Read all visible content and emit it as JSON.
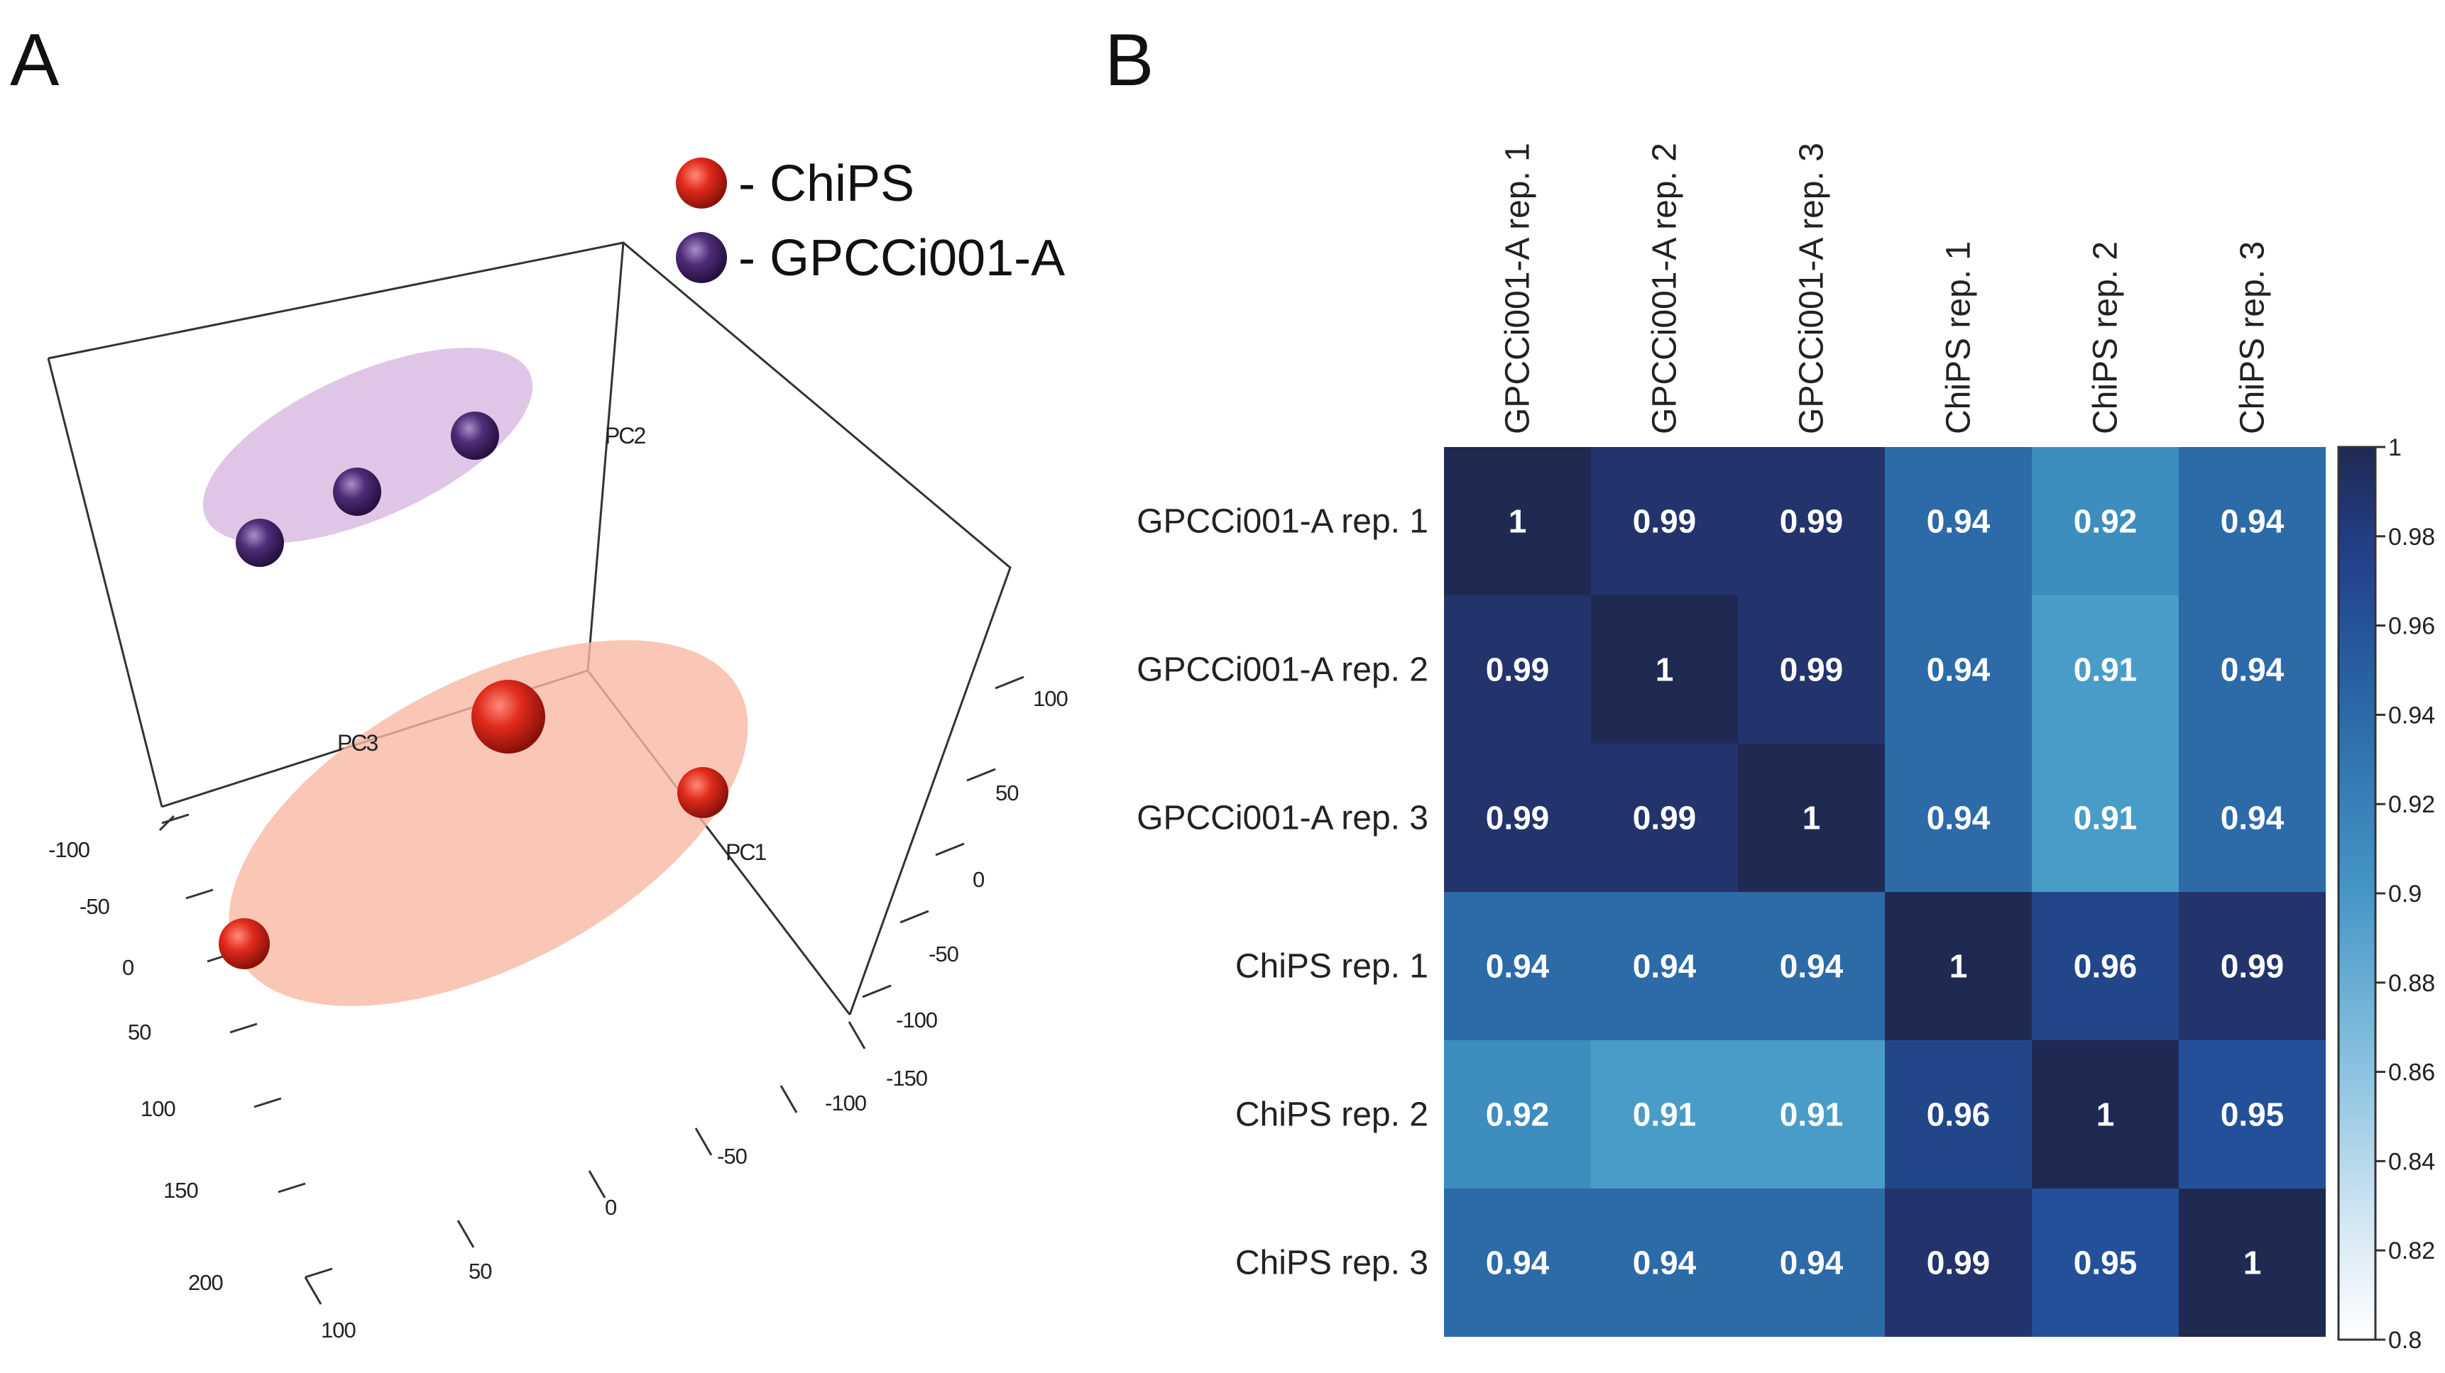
{
  "panels": {
    "a_letter": "A",
    "b_letter": "B"
  },
  "chart_data": [
    {
      "type": "scatter3d",
      "title": "",
      "axes": {
        "pc1": {
          "label": "PC1",
          "ticks": [
            "-150",
            "-100",
            "-50",
            "0",
            "50",
            "100"
          ]
        },
        "pc2": {
          "label": "PC2",
          "ticks": [
            "-100",
            "-50",
            "0",
            "50",
            "100"
          ]
        },
        "pc3": {
          "label": "PC3",
          "ticks": [
            "-100",
            "-50",
            "0",
            "50",
            "100",
            "150",
            "200"
          ]
        }
      },
      "legend": [
        {
          "label": "- ChiPS",
          "color": "#d42a1e"
        },
        {
          "label": "- GPCCi001-A",
          "color": "#4b2a74"
        }
      ],
      "groups": [
        {
          "name": "ChiPS",
          "color": "#d42a1e",
          "ellipse_color": "#f9b8a3",
          "points": 3
        },
        {
          "name": "GPCCi001-A",
          "color": "#4b2a74",
          "ellipse_color": "#d8b8e0",
          "points": 3
        }
      ]
    },
    {
      "type": "heatmap",
      "title": "",
      "rows": [
        "GPCCi001-A rep. 1",
        "GPCCi001-A rep. 2",
        "GPCCi001-A rep. 3",
        "ChiPS rep. 1",
        "ChiPS rep. 2",
        "ChiPS rep. 3"
      ],
      "columns": [
        "GPCCi001-A rep. 1",
        "GPCCi001-A rep. 2",
        "GPCCi001-A rep. 3",
        "ChiPS rep. 1",
        "ChiPS rep. 2",
        "ChiPS rep. 3"
      ],
      "values": [
        [
          1,
          0.99,
          0.99,
          0.94,
          0.92,
          0.94
        ],
        [
          0.99,
          1,
          0.99,
          0.94,
          0.91,
          0.94
        ],
        [
          0.99,
          0.99,
          1,
          0.94,
          0.91,
          0.94
        ],
        [
          0.94,
          0.94,
          0.94,
          1,
          0.96,
          0.99
        ],
        [
          0.92,
          0.91,
          0.91,
          0.96,
          1,
          0.95
        ],
        [
          0.94,
          0.94,
          0.94,
          0.99,
          0.95,
          1
        ]
      ],
      "labels": [
        [
          "1",
          "0.99",
          "0.99",
          "0.94",
          "0.92",
          "0.94"
        ],
        [
          "0.99",
          "1",
          "0.99",
          "0.94",
          "0.91",
          "0.94"
        ],
        [
          "0.99",
          "0.99",
          "1",
          "0.94",
          "0.91",
          "0.94"
        ],
        [
          "0.94",
          "0.94",
          "0.94",
          "1",
          "0.96",
          "0.99"
        ],
        [
          "0.92",
          "0.91",
          "0.91",
          "0.96",
          "1",
          "0.95"
        ],
        [
          "0.94",
          "0.94",
          "0.94",
          "0.99",
          "0.95",
          "1"
        ]
      ],
      "colorbar": {
        "range": [
          0.8,
          1
        ],
        "ticks": [
          "1",
          "0.98",
          "0.96",
          "0.94",
          "0.92",
          "0.9",
          "0.88",
          "0.86",
          "0.84",
          "0.82",
          "0.8"
        ]
      },
      "colors": {
        "v1": "#1f2a52",
        "v099": "#22346b",
        "v096": "#22468a",
        "v095": "#24509a",
        "v094": "#2d6aa8",
        "v092": "#3d8dbf",
        "v091": "#4a9cc8"
      }
    }
  ]
}
